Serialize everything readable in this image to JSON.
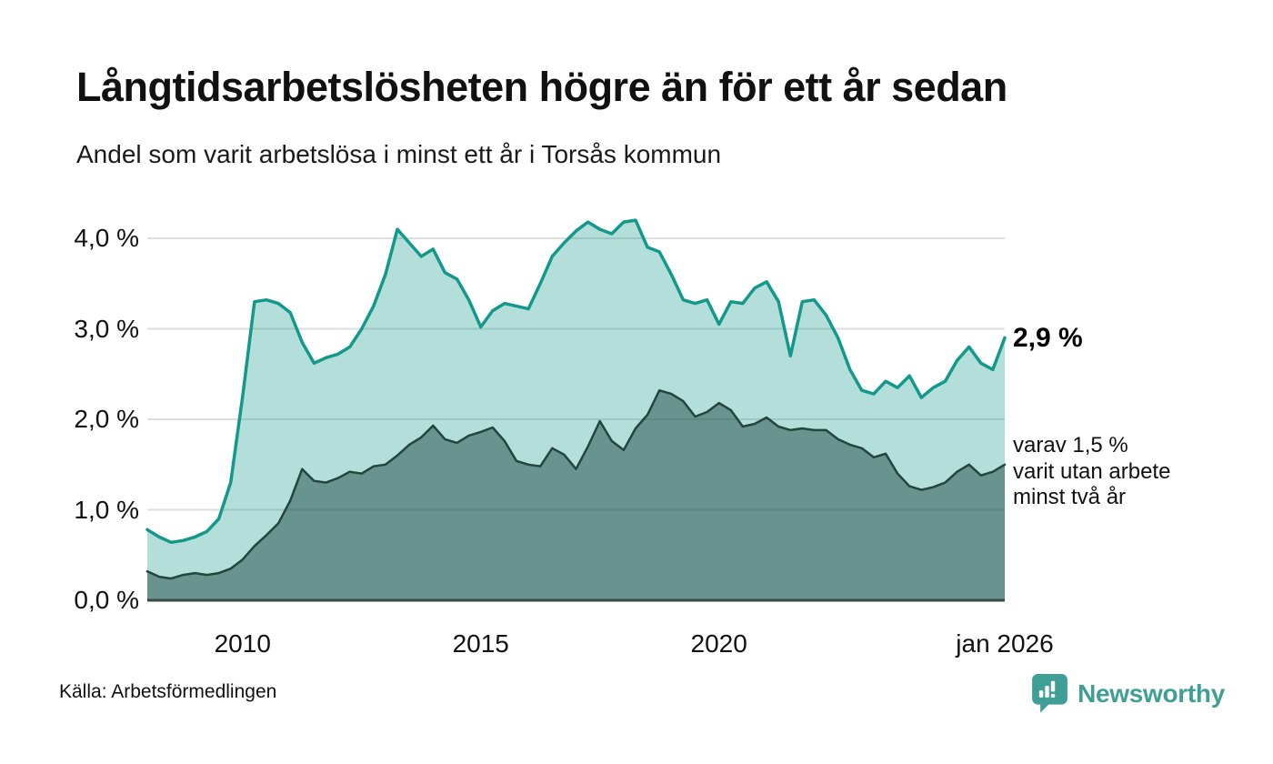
{
  "header": {
    "title": "Långtidsarbetslösheten högre än för ett år sedan",
    "subtitle": "Andel som varit arbetslösa i minst ett år i Torsås kommun"
  },
  "footer": {
    "source": "Källa: Arbetsförmedlingen",
    "brand": "Newsworthy"
  },
  "colors": {
    "primary_line": "#13998a",
    "primary_fill": "#13998a",
    "primary_fill_opacity": 0.32,
    "secondary_line": "#24443f",
    "secondary_fill": "#1f4843",
    "secondary_fill_opacity": 0.5,
    "gridline": "#dedede",
    "baseline": "#3b4848",
    "brand_teal": "#3f9f96",
    "text": "#111111"
  },
  "chart_data": {
    "type": "area",
    "title": "Långtidsarbetslösheten högre än för ett år sedan",
    "subtitle": "Andel som varit arbetslösa i minst ett år i Torsås kommun",
    "unit": "%",
    "grid": "horizontal",
    "legend_position": "none",
    "xlim": [
      2008,
      2026
    ],
    "ylim": [
      0,
      4.35
    ],
    "x_start": 2008,
    "x_step": 0.25,
    "x_tick_values": [
      2010,
      2015,
      2020,
      2026
    ],
    "x_tick_labels": [
      "2010",
      "2015",
      "2020",
      "jan 2026"
    ],
    "y_tick_values": [
      0,
      1,
      2,
      3,
      4
    ],
    "y_tick_labels": [
      "0,0 %",
      "1,0 %",
      "2,0 %",
      "3,0 %",
      "4,0 %"
    ],
    "annotations": {
      "latest_value": "2,9 %",
      "secondary_note": "varav 1,5 %\nvarit utan arbete\nminst två år"
    },
    "series": [
      {
        "name": "Andel som varit arbetslösa minst ett år",
        "last_value": 2.9,
        "values": [
          0.78,
          0.7,
          0.64,
          0.66,
          0.7,
          0.76,
          0.9,
          1.3,
          2.25,
          3.3,
          3.32,
          3.28,
          3.18,
          2.85,
          2.62,
          2.68,
          2.72,
          2.8,
          3.0,
          3.25,
          3.6,
          4.1,
          3.95,
          3.8,
          3.88,
          3.62,
          3.55,
          3.32,
          3.02,
          3.2,
          3.28,
          3.25,
          3.22,
          3.5,
          3.8,
          3.95,
          4.08,
          4.18,
          4.1,
          4.05,
          4.18,
          4.2,
          3.9,
          3.85,
          3.6,
          3.32,
          3.28,
          3.32,
          3.05,
          3.3,
          3.28,
          3.45,
          3.52,
          3.3,
          2.7,
          3.3,
          3.32,
          3.15,
          2.9,
          2.55,
          2.32,
          2.28,
          2.42,
          2.35,
          2.48,
          2.24,
          2.35,
          2.42,
          2.65,
          2.8,
          2.62,
          2.55,
          2.9
        ]
      },
      {
        "name": "varav utan arbete minst två år",
        "last_value": 1.5,
        "values": [
          0.32,
          0.26,
          0.24,
          0.28,
          0.3,
          0.28,
          0.3,
          0.35,
          0.45,
          0.6,
          0.72,
          0.85,
          1.1,
          1.45,
          1.32,
          1.3,
          1.35,
          1.42,
          1.4,
          1.48,
          1.5,
          1.6,
          1.72,
          1.8,
          1.93,
          1.78,
          1.74,
          1.82,
          1.86,
          1.91,
          1.76,
          1.54,
          1.5,
          1.48,
          1.68,
          1.61,
          1.45,
          1.7,
          1.98,
          1.76,
          1.66,
          1.9,
          2.05,
          2.32,
          2.28,
          2.2,
          2.03,
          2.08,
          2.18,
          2.1,
          1.92,
          1.95,
          2.02,
          1.92,
          1.88,
          1.9,
          1.88,
          1.88,
          1.78,
          1.72,
          1.68,
          1.58,
          1.62,
          1.4,
          1.26,
          1.22,
          1.25,
          1.3,
          1.42,
          1.5,
          1.38,
          1.42,
          1.5
        ]
      }
    ]
  }
}
